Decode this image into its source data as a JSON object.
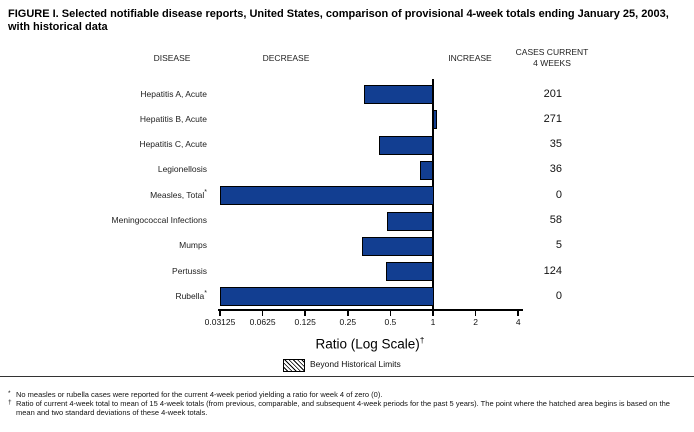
{
  "chart_data": {
    "type": "bar",
    "orientation": "horizontal",
    "title": "FIGURE I. Selected notifiable disease reports, United States, comparison of provisional 4-week totals ending January 25, 2003, with historical data",
    "column_headers": {
      "disease": "DISEASE",
      "decrease": "DECREASE",
      "increase": "INCREASE",
      "cases_line1": "CASES CURRENT",
      "cases_line2": "4 WEEKS"
    },
    "xlabel": "Ratio (Log Scale)",
    "xlabel_footnote_marker": "†",
    "x_scale": "log2",
    "xlim": [
      0.03125,
      4
    ],
    "baseline_ratio": 1,
    "x_ticks": [
      0.03125,
      0.0625,
      0.125,
      0.25,
      0.5,
      1,
      2,
      4
    ],
    "x_tick_labels": [
      "0.03125",
      "0.0625",
      "0.125",
      "0.25",
      "0.5",
      "1",
      "2",
      "4"
    ],
    "bar_color": "#123e91",
    "rows": [
      {
        "disease": "Hepatitis A, Acute",
        "footnote_marker": "",
        "ratio": 0.33,
        "cases": "201"
      },
      {
        "disease": "Hepatitis B, Acute",
        "footnote_marker": "",
        "ratio": 1.06,
        "cases": "271"
      },
      {
        "disease": "Hepatitis C, Acute",
        "footnote_marker": "",
        "ratio": 0.42,
        "cases": "35"
      },
      {
        "disease": "Legionellosis",
        "footnote_marker": "",
        "ratio": 0.81,
        "cases": "36"
      },
      {
        "disease": "Measles, Total",
        "footnote_marker": "*",
        "ratio": 0,
        "cases": "0"
      },
      {
        "disease": "Meningococcal Infections",
        "footnote_marker": "",
        "ratio": 0.48,
        "cases": "58"
      },
      {
        "disease": "Mumps",
        "footnote_marker": "",
        "ratio": 0.32,
        "cases": "5"
      },
      {
        "disease": "Pertussis",
        "footnote_marker": "",
        "ratio": 0.47,
        "cases": "124"
      },
      {
        "disease": "Rubella",
        "footnote_marker": "*",
        "ratio": 0,
        "cases": "0"
      }
    ],
    "legend": [
      {
        "swatch": "diagonal-hatch",
        "label": "Beyond Historical Limits"
      }
    ]
  },
  "footnotes": [
    {
      "marker": "*",
      "text": "No measles or rubella cases were reported for the current 4-week period yielding a ratio for week 4 of zero (0)."
    },
    {
      "marker": "†",
      "text": "Ratio of current 4-week total to mean of 15 4-week totals (from previous, comparable, and subsequent 4-week periods for the past 5 years). The point where the hatched area begins is based on the mean and two standard deviations of these 4-week totals."
    }
  ]
}
